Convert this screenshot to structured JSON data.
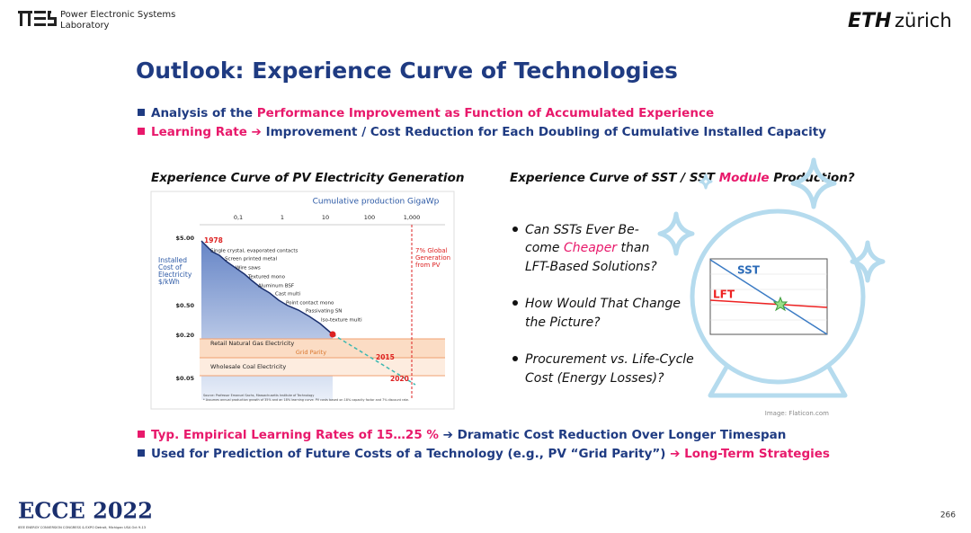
{
  "header": {
    "lab": [
      "Power Electronic Systems",
      "Laboratory"
    ],
    "eth": "ETH",
    "zurich": "zürich"
  },
  "title": "Outlook: Experience Curve of Technologies",
  "top_bullets": [
    [
      "Analysis of the ",
      "Performance Improvement as Function of Accumulated Experience"
    ],
    [
      "Learning Rate ➔ ",
      "Improvement / Cost Reduction for Each Doubling of Cumulative Installed Capacity"
    ]
  ],
  "left": {
    "heading": "Experience Curve of PV Electricity Generation",
    "figure": {
      "axis_title": "Cumulative production GigaWp",
      "top_ticks": [
        "0,1",
        "1",
        "10",
        "100",
        "1,000"
      ],
      "y_ticks": [
        "$5.00",
        "$0.50",
        "$0.20",
        "$0.05"
      ],
      "y_label": [
        "Installed",
        "Cost of",
        "Electricity",
        "$/kWh"
      ],
      "share_note": [
        "7% Global",
        "Generation",
        "from PV"
      ],
      "technologies": [
        "Single crystal, evaporated contacts",
        "Screen printed metal",
        "Wire saws",
        "Textured mono",
        "Aluminum BSF",
        "Cast multi",
        "Point contact mono",
        "Passivating SN",
        "Iso-texture multi"
      ],
      "years": [
        "1978",
        "2015",
        "2020"
      ],
      "bands": [
        "Retail Natural Gas Electricity",
        "Grid Parity",
        "Wholesale Coal Electricity"
      ],
      "source": [
        "Source: Professor Emanuel Sachs, Massachusetts Institute of Technology",
        "* Assumes annual production growth of 35% and an 18% learning curve. PV costs based on 18% capacity factor and 7% discount rate."
      ]
    }
  },
  "right": {
    "heading": [
      "Experience Curve of SST / SST ",
      "Module",
      " Production?"
    ],
    "questions": [
      [
        "Can SSTs Ever Be-",
        "come ",
        "Cheaper",
        " than",
        "LFT-Based Solutions?"
      ],
      [
        "How Would That Change",
        "the Picture?"
      ],
      [
        "Procurement vs. Life-Cycle",
        "Cost (Energy Losses)?"
      ]
    ],
    "ball_labels": [
      "SST",
      "LFT"
    ],
    "credit": "Image: Flaticon.com"
  },
  "bottom_bullets": [
    [
      "Typ. Empirical Learning Rates of 15…25 % ",
      "➔ Dramatic Cost Reduction Over Longer Timespan"
    ],
    [
      "Used for Prediction of Future Costs of a Technology (e.g., PV “Grid Parity”) ",
      "➔ Long-Term Strategies"
    ]
  ],
  "footer": {
    "logo": "ECCE 2022",
    "logo_sub": "IEEE ENERGY CONVERSION CONGRESS & EXPO  Detroit, Michigan USA Oct 9-13",
    "page": "266"
  }
}
